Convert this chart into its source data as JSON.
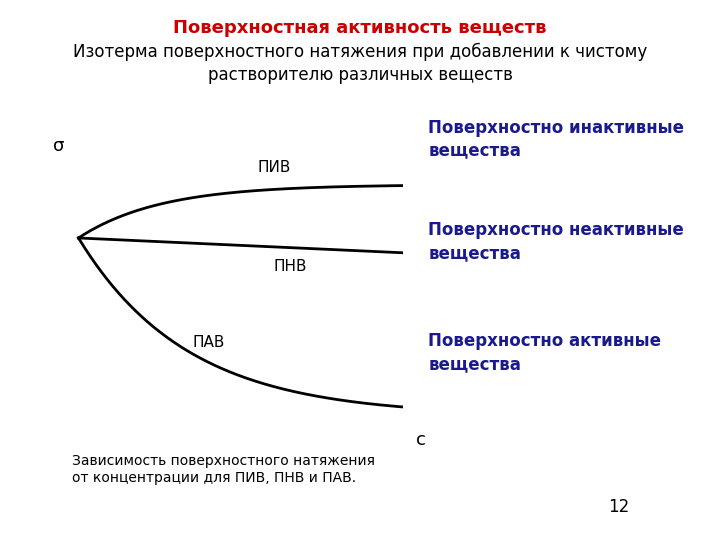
{
  "title": "Поверхностная активность веществ",
  "subtitle": "Изотерма поверхностного натяжения при добавлении к чистому\nрастворителю различных веществ",
  "title_color": "#cc0000",
  "subtitle_color": "#000000",
  "background_color": "#ffffff",
  "sigma_label": "σ",
  "c_label": "c",
  "caption": "Зависимость поверхностного натяжения\nот концентрации для ПИВ, ПНВ и ПАВ.",
  "piv_label": "ПИВ",
  "pnv_label": "ПНВ",
  "pav_label": "ПАВ",
  "piv_annotation": "Поверхностно инактивные\nвещества",
  "pnv_annotation": "Поверхностно неактивные\nвещества",
  "pav_annotation": "Поверхностно активные\nвещества",
  "annotation_color": "#1a1a8c",
  "curve_color": "#000000",
  "label_color": "#000000",
  "page_number": "12",
  "title_fontsize": 13,
  "subtitle_fontsize": 12,
  "annotation_fontsize": 12,
  "caption_fontsize": 10,
  "curve_lw": 2.0
}
